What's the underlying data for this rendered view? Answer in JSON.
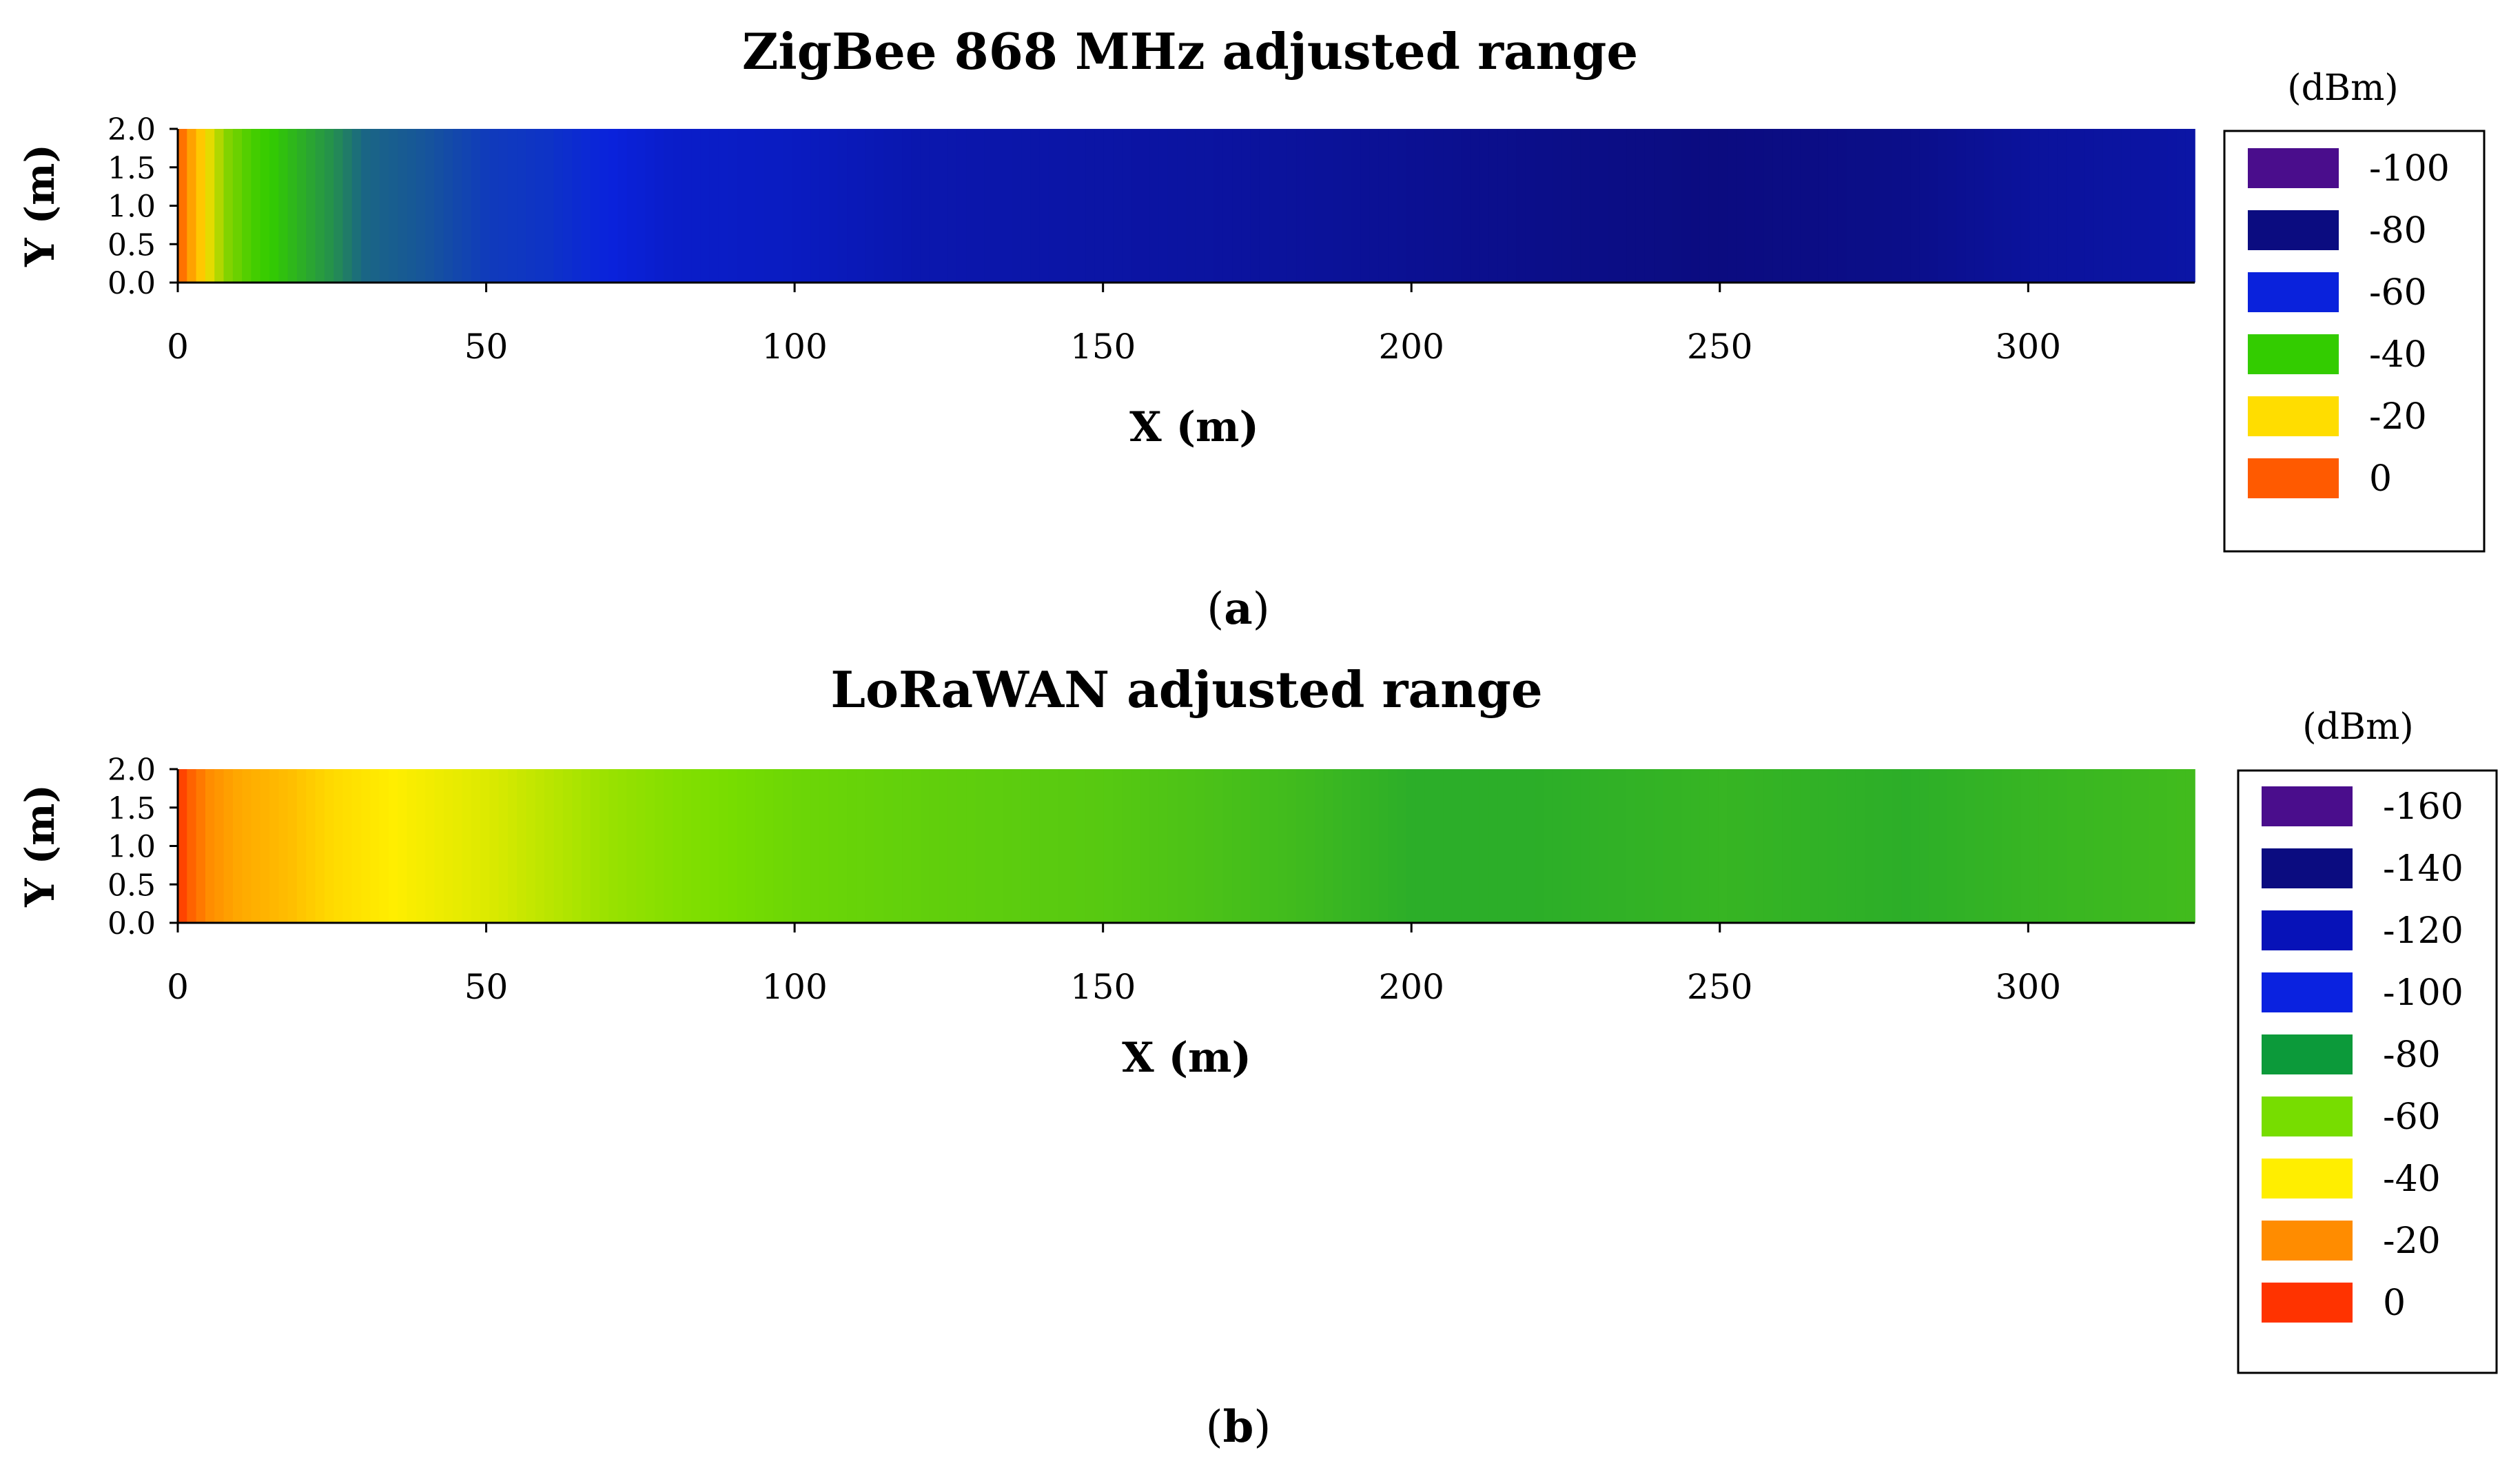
{
  "chart_data": [
    {
      "type": "heatmap",
      "panel_label": "a",
      "title": "ZigBee 868 MHz adjusted range",
      "xlabel": "X (m)",
      "ylabel": "Y (m)",
      "xlim": [
        0,
        327
      ],
      "ylim": [
        0,
        2.0
      ],
      "x_ticks": [
        "0",
        "50",
        "100",
        "150",
        "200",
        "250",
        "300"
      ],
      "x_tick_values": [
        0,
        50,
        100,
        150,
        200,
        250,
        300
      ],
      "y_ticks": [
        "0.0",
        "0.5",
        "1.0",
        "1.5",
        "2.0"
      ],
      "y_tick_values": [
        0.0,
        0.5,
        1.0,
        1.5,
        2.0
      ],
      "legend": {
        "unit": "(dBm)",
        "placement": "right",
        "entries": [
          {
            "label": "-100",
            "value": -100,
            "color": "#4a0d8c"
          },
          {
            "label": "-80",
            "value": -80,
            "color": "#0b0c80"
          },
          {
            "label": "-60",
            "value": -60,
            "color": "#0a22dc"
          },
          {
            "label": "-40",
            "value": -40,
            "color": "#33cc00"
          },
          {
            "label": "-20",
            "value": -20,
            "color": "#ffdd00"
          },
          {
            "label": "0",
            "value": 0,
            "color": "#ff5a00"
          }
        ]
      },
      "x_samples": [
        0,
        2,
        5,
        8,
        12,
        18,
        25,
        30,
        40,
        50,
        60,
        70,
        80,
        100,
        120,
        150,
        180,
        200,
        220,
        250,
        280,
        300,
        327
      ],
      "rssi_samples": [
        0,
        -10,
        -22,
        -32,
        -38,
        -42,
        -47,
        -52,
        -54,
        -57,
        -58,
        -60,
        -64,
        -66,
        -70,
        -72,
        -74,
        -76,
        -78,
        -80,
        -78,
        -74,
        -72
      ]
    },
    {
      "type": "heatmap",
      "panel_label": "b",
      "title": "LoRaWAN adjusted range",
      "xlabel": "X (m)",
      "ylabel": "Y (m)",
      "xlim": [
        0,
        327
      ],
      "ylim": [
        0,
        2.0
      ],
      "x_ticks": [
        "0",
        "50",
        "100",
        "150",
        "200",
        "250",
        "300"
      ],
      "x_tick_values": [
        0,
        50,
        100,
        150,
        200,
        250,
        300
      ],
      "y_ticks": [
        "0.0",
        "0.5",
        "1.0",
        "1.5",
        "2.0"
      ],
      "y_tick_values": [
        0.0,
        0.5,
        1.0,
        1.5,
        2.0
      ],
      "legend": {
        "unit": "(dBm)",
        "placement": "right",
        "entries": [
          {
            "label": "-160",
            "value": -160,
            "color": "#4a0d8c"
          },
          {
            "label": "-140",
            "value": -140,
            "color": "#0b0c80"
          },
          {
            "label": "-120",
            "value": -120,
            "color": "#0712b8"
          },
          {
            "label": "-100",
            "value": -100,
            "color": "#0a22e0"
          },
          {
            "label": "-80",
            "value": -80,
            "color": "#0c9a3a"
          },
          {
            "label": "-60",
            "value": -60,
            "color": "#77dd00"
          },
          {
            "label": "-40",
            "value": -40,
            "color": "#ffee00"
          },
          {
            "label": "-20",
            "value": -20,
            "color": "#ff8c00"
          },
          {
            "label": "0",
            "value": 0,
            "color": "#ff3300"
          }
        ]
      },
      "x_samples": [
        0,
        2,
        5,
        10,
        18,
        25,
        35,
        50,
        60,
        70,
        80,
        100,
        120,
        150,
        180,
        200,
        220,
        250,
        280,
        300,
        327
      ],
      "rssi_samples": [
        0,
        -10,
        -20,
        -26,
        -30,
        -36,
        -40,
        -45,
        -50,
        -55,
        -58,
        -62,
        -64,
        -66,
        -70,
        -74,
        -74,
        -72,
        -74,
        -72,
        -70
      ]
    }
  ]
}
